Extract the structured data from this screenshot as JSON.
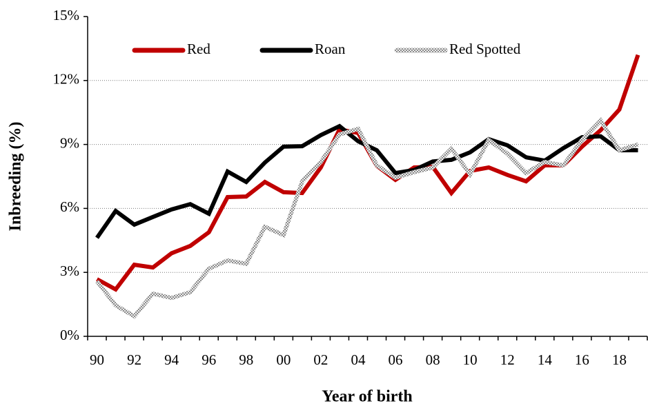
{
  "chart_data": {
    "type": "line",
    "x_label": "Year of birth",
    "y_label": "Inbreeding (%)",
    "categories": [
      "90",
      null,
      "92",
      null,
      "94",
      null,
      "96",
      null,
      "98",
      null,
      "00",
      null,
      "02",
      null,
      "04",
      null,
      "06",
      null,
      "08",
      null,
      "10",
      null,
      "12",
      null,
      "14",
      null,
      "16",
      null,
      "18",
      null
    ],
    "series": [
      {
        "name": "Red",
        "color": "#c00000",
        "style": "solid",
        "values": [
          2.68,
          2.2,
          3.36,
          3.23,
          3.9,
          4.24,
          4.88,
          6.53,
          6.56,
          7.24,
          6.76,
          6.72,
          7.92,
          9.7,
          9.54,
          8.0,
          7.34,
          7.92,
          7.95,
          6.72,
          7.76,
          7.92,
          7.57,
          7.27,
          8.02,
          8.02,
          8.9,
          9.67,
          10.64,
          13.2
        ]
      },
      {
        "name": "Roan",
        "color": "#000000",
        "style": "solid",
        "values": [
          4.62,
          5.88,
          5.24,
          5.6,
          5.95,
          6.2,
          5.75,
          7.73,
          7.24,
          8.15,
          8.9,
          8.92,
          9.44,
          9.86,
          9.15,
          8.73,
          7.66,
          7.8,
          8.2,
          8.28,
          8.63,
          9.25,
          8.96,
          8.4,
          8.24,
          8.83,
          9.34,
          9.38,
          8.73,
          8.73
        ]
      },
      {
        "name": "Red Spotted",
        "color": "#8c8c8c",
        "style": "dotted",
        "values": [
          2.59,
          1.45,
          0.94,
          2.0,
          1.8,
          2.07,
          3.17,
          3.56,
          3.4,
          5.14,
          4.75,
          7.27,
          8.18,
          9.47,
          9.73,
          8.02,
          7.44,
          7.7,
          7.92,
          8.8,
          7.6,
          9.21,
          8.57,
          7.66,
          8.18,
          8.02,
          9.21,
          10.12,
          8.73,
          9.0
        ]
      }
    ],
    "ylim": [
      0,
      15
    ],
    "yticks": [
      {
        "value": 0,
        "label": "0%"
      },
      {
        "value": 3,
        "label": "3%"
      },
      {
        "value": 6,
        "label": "6%"
      },
      {
        "value": 9,
        "label": "9%"
      },
      {
        "value": 12,
        "label": "12%"
      },
      {
        "value": 15,
        "label": "15%"
      }
    ],
    "grid": true,
    "legend": "top"
  }
}
